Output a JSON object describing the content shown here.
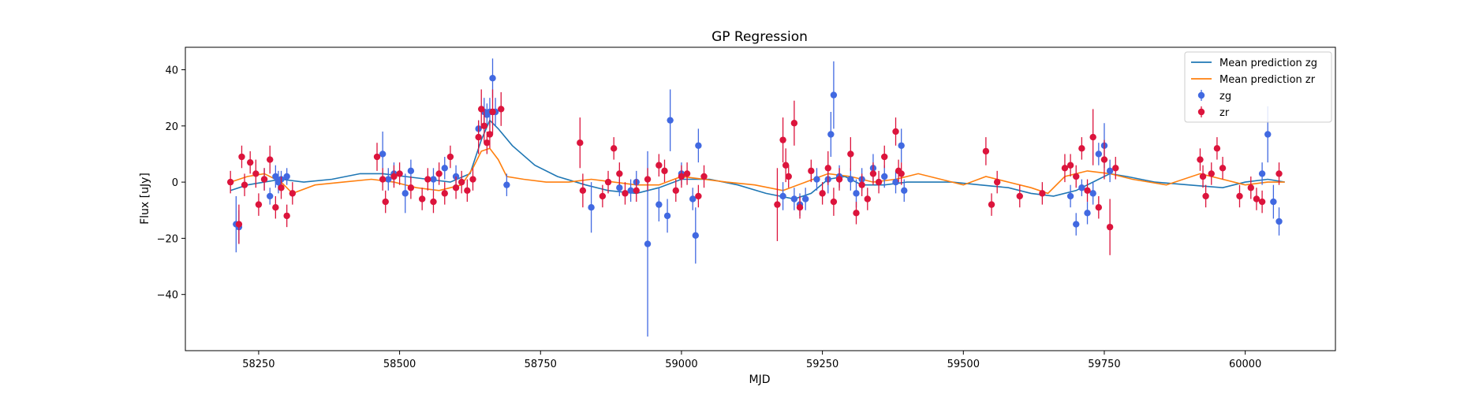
{
  "chart_data": {
    "type": "scatter",
    "title": "GP Regression",
    "xlabel": "MJD",
    "ylabel": "Flux [uJy]",
    "xlim": [
      58120,
      60160
    ],
    "ylim": [
      -60,
      48
    ],
    "xticks": [
      58250,
      58500,
      58750,
      59000,
      59250,
      59500,
      59750,
      60000
    ],
    "yticks": [
      -40,
      -20,
      0,
      20,
      40
    ],
    "legend_position": "top-right",
    "grid": false,
    "colors": {
      "zg_line": "#1f77b4",
      "zr_line": "#ff7f0e",
      "zg_points": "#4169e1",
      "zr_points": "#dc143c"
    },
    "legend": [
      {
        "label": "Mean prediction zg",
        "kind": "line",
        "color": "#1f77b4"
      },
      {
        "label": "Mean prediction zr",
        "kind": "line",
        "color": "#ff7f0e"
      },
      {
        "label": "zg",
        "kind": "errorbar",
        "color": "#4169e1"
      },
      {
        "label": "zr",
        "kind": "errorbar",
        "color": "#dc143c"
      }
    ],
    "series": [
      {
        "name": "Mean prediction zg",
        "kind": "line",
        "x": [
          58200,
          58230,
          58260,
          58290,
          58330,
          58380,
          58430,
          58470,
          58510,
          58550,
          58590,
          58625,
          58645,
          58660,
          58675,
          58700,
          58740,
          58780,
          58830,
          58870,
          58920,
          58960,
          59000,
          59050,
          59100,
          59150,
          59200,
          59230,
          59260,
          59290,
          59320,
          59360,
          59400,
          59440,
          59480,
          59530,
          59580,
          59620,
          59660,
          59700,
          59740,
          59760,
          59790,
          59840,
          59900,
          59960,
          60000,
          60040,
          60070
        ],
        "y": [
          -3,
          -1,
          0,
          1,
          0,
          1,
          3,
          3,
          2,
          1,
          0,
          3,
          15,
          22,
          19,
          13,
          6,
          2,
          -1,
          -3,
          -4,
          -2,
          1,
          1,
          -1,
          -4,
          -6,
          -4,
          1,
          2,
          -1,
          -1,
          0,
          0,
          0,
          -1,
          -2,
          -4,
          -5,
          -3,
          1,
          3,
          2,
          0,
          -1,
          -2,
          0,
          1,
          0
        ]
      },
      {
        "name": "Mean prediction zr",
        "kind": "line",
        "x": [
          58200,
          58230,
          58260,
          58290,
          58310,
          58350,
          58400,
          58450,
          58490,
          58530,
          58570,
          58610,
          58630,
          58645,
          58660,
          58675,
          58690,
          58720,
          58760,
          58800,
          58840,
          58880,
          58920,
          58960,
          59000,
          59040,
          59080,
          59130,
          59180,
          59220,
          59260,
          59300,
          59340,
          59380,
          59420,
          59460,
          59500,
          59540,
          59580,
          59620,
          59650,
          59680,
          59720,
          59760,
          59800,
          59860,
          59920,
          59960,
          60000,
          60040,
          60070
        ],
        "y": [
          0,
          2,
          3,
          0,
          -4,
          -1,
          0,
          1,
          0,
          -2,
          -3,
          -1,
          5,
          11,
          12,
          8,
          2,
          1,
          0,
          0,
          1,
          0,
          -1,
          -1,
          2,
          1,
          0,
          -1,
          -3,
          0,
          3,
          2,
          0,
          1,
          3,
          1,
          -1,
          2,
          0,
          -2,
          -4,
          2,
          4,
          3,
          1,
          -1,
          3,
          1,
          -1,
          0,
          0
        ]
      },
      {
        "name": "zg",
        "kind": "errorbar",
        "x": [
          58210,
          58215,
          58260,
          58270,
          58280,
          58285,
          58290,
          58300,
          58470,
          58480,
          58490,
          58510,
          58520,
          58560,
          58580,
          58600,
          58640,
          58650,
          58655,
          58660,
          58665,
          58670,
          58690,
          58840,
          58890,
          58910,
          58920,
          58940,
          58960,
          58975,
          58980,
          59000,
          59020,
          59025,
          59030,
          59180,
          59200,
          59210,
          59220,
          59240,
          59260,
          59265,
          59270,
          59280,
          59300,
          59310,
          59320,
          59340,
          59360,
          59380,
          59390,
          59395,
          59690,
          59700,
          59710,
          59720,
          59730,
          59740,
          59750,
          59760,
          60030,
          60040,
          60050,
          60060
        ],
        "y": [
          -15,
          -16,
          1,
          -5,
          2,
          0,
          1,
          2,
          10,
          1,
          3,
          -4,
          4,
          1,
          5,
          2,
          19,
          25,
          24,
          25,
          37,
          25,
          -1,
          -9,
          -2,
          -3,
          0,
          -22,
          -8,
          -12,
          22,
          3,
          -6,
          -19,
          13,
          -5,
          -6,
          -8,
          -6,
          1,
          1,
          17,
          31,
          2,
          1,
          -4,
          1,
          5,
          2,
          0,
          13,
          -3,
          -5,
          -15,
          -2,
          -11,
          -4,
          10,
          13,
          4,
          3,
          17,
          -7,
          -14
        ],
        "err": [
          10,
          6,
          4,
          3,
          4,
          4,
          3,
          3,
          8,
          4,
          4,
          7,
          4,
          4,
          4,
          4,
          3,
          5,
          4,
          5,
          7,
          5,
          4,
          9,
          3,
          4,
          4,
          33,
          6,
          6,
          11,
          4,
          4,
          10,
          6,
          5,
          4,
          4,
          4,
          4,
          5,
          8,
          12,
          4,
          4,
          5,
          4,
          5,
          4,
          4,
          6,
          4,
          4,
          4,
          3,
          4,
          4,
          4,
          8,
          4,
          4,
          10,
          6,
          5
        ]
      },
      {
        "name": "zr",
        "kind": "errorbar",
        "x": [
          58200,
          58215,
          58220,
          58225,
          58235,
          58245,
          58250,
          58260,
          58270,
          58280,
          58290,
          58300,
          58310,
          58460,
          58470,
          58475,
          58490,
          58500,
          58520,
          58540,
          58550,
          58560,
          58570,
          58580,
          58590,
          58600,
          58610,
          58620,
          58630,
          58640,
          58645,
          58650,
          58655,
          58660,
          58665,
          58680,
          58820,
          58825,
          58860,
          58870,
          58880,
          58890,
          58900,
          58920,
          58940,
          58960,
          58970,
          58990,
          59000,
          59010,
          59030,
          59040,
          59170,
          59180,
          59185,
          59190,
          59200,
          59210,
          59230,
          59250,
          59260,
          59270,
          59280,
          59300,
          59310,
          59320,
          59330,
          59340,
          59350,
          59360,
          59380,
          59385,
          59390,
          59540,
          59550,
          59560,
          59600,
          59640,
          59680,
          59690,
          59700,
          59710,
          59720,
          59730,
          59740,
          59750,
          59760,
          59770,
          59920,
          59925,
          59930,
          59940,
          59950,
          59960,
          59990,
          60010,
          60020,
          60030,
          60060
        ],
        "y": [
          0,
          -15,
          9,
          -1,
          7,
          3,
          -8,
          1,
          8,
          -9,
          -2,
          -12,
          -4,
          9,
          1,
          -7,
          2,
          3,
          -2,
          -6,
          1,
          -7,
          3,
          -4,
          9,
          -2,
          0,
          -3,
          1,
          16,
          26,
          20,
          14,
          17,
          25,
          26,
          14,
          -3,
          -5,
          0,
          12,
          3,
          -4,
          -3,
          1,
          6,
          4,
          -3,
          2,
          3,
          -5,
          2,
          -8,
          15,
          6,
          2,
          21,
          -9,
          4,
          -4,
          5,
          -7,
          1,
          10,
          -11,
          -1,
          -6,
          3,
          0,
          9,
          18,
          4,
          3,
          11,
          -8,
          0,
          -5,
          -4,
          5,
          6,
          2,
          12,
          -3,
          16,
          -9,
          8,
          -16,
          5,
          8,
          2,
          -5,
          3,
          12,
          5,
          -5,
          -2,
          -6,
          -7,
          3
        ],
        "err": [
          4,
          7,
          4,
          4,
          4,
          5,
          4,
          4,
          5,
          4,
          4,
          4,
          4,
          5,
          4,
          4,
          4,
          4,
          4,
          4,
          4,
          4,
          4,
          4,
          4,
          4,
          4,
          4,
          4,
          6,
          7,
          6,
          4,
          5,
          8,
          6,
          9,
          6,
          4,
          4,
          4,
          4,
          4,
          4,
          4,
          4,
          4,
          4,
          4,
          4,
          4,
          4,
          13,
          8,
          6,
          4,
          8,
          4,
          4,
          4,
          6,
          5,
          4,
          6,
          4,
          4,
          4,
          4,
          4,
          4,
          5,
          4,
          4,
          5,
          4,
          4,
          4,
          4,
          5,
          4,
          4,
          4,
          4,
          10,
          4,
          7,
          10,
          4,
          4,
          4,
          4,
          4,
          4,
          4,
          4,
          4,
          4,
          4,
          4
        ]
      }
    ]
  }
}
